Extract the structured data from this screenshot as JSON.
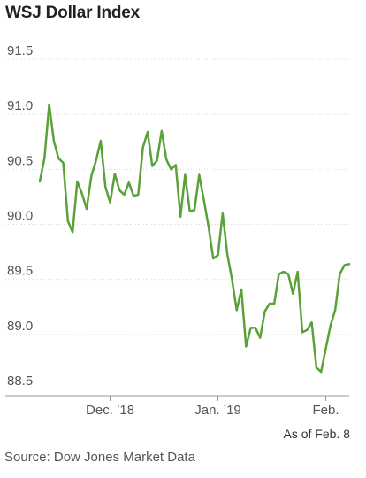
{
  "chart_data": {
    "type": "line",
    "title": "WSJ Dollar Index",
    "xlabel": "",
    "ylabel": "",
    "ylim": [
      88.5,
      91.5
    ],
    "y_ticks": [
      "91.5",
      "91.0",
      "90.5",
      "90.0",
      "89.5",
      "89.0",
      "88.5"
    ],
    "x_ticks": [
      "Dec. ’18",
      "Jan. ’19",
      "Feb."
    ],
    "x_tick_positions": [
      15,
      38,
      61
    ],
    "grid": true,
    "colors": {
      "line": "#5aa13a"
    },
    "series": [
      {
        "name": "",
        "values": [
          90.39,
          90.6,
          91.09,
          90.76,
          90.6,
          90.56,
          90.03,
          89.93,
          90.39,
          90.28,
          90.14,
          90.44,
          90.58,
          90.76,
          90.34,
          90.2,
          90.46,
          90.31,
          90.27,
          90.38,
          90.26,
          90.27,
          90.7,
          90.84,
          90.53,
          90.58,
          90.85,
          90.59,
          90.5,
          90.54,
          90.07,
          90.45,
          90.12,
          90.13,
          90.45,
          90.22,
          89.98,
          89.69,
          89.72,
          90.1,
          89.73,
          89.5,
          89.22,
          89.41,
          88.89,
          89.06,
          89.06,
          88.97,
          89.21,
          89.28,
          89.28,
          89.55,
          89.57,
          89.55,
          89.37,
          89.57,
          89.02,
          89.04,
          89.11,
          88.7,
          88.66,
          88.87,
          89.08,
          89.22,
          89.55,
          89.63,
          89.64
        ]
      }
    ]
  },
  "footer": {
    "as_of": "As of Feb. 8",
    "source": "Source: Dow Jones Market Data"
  }
}
